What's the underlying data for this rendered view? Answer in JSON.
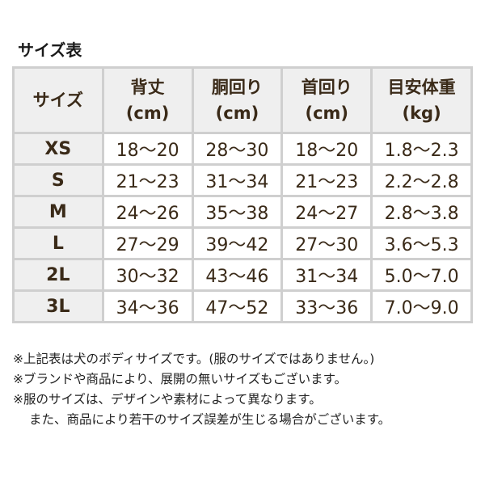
{
  "title": "サイズ表",
  "columns": [
    {
      "label": "サイズ",
      "unit": ""
    },
    {
      "label": "背丈",
      "unit": "(cm)"
    },
    {
      "label": "胴回り",
      "unit": "(cm)"
    },
    {
      "label": "首回り",
      "unit": "(cm)"
    },
    {
      "label": "目安体重",
      "unit": "(kg)"
    }
  ],
  "rows": [
    [
      "XS",
      "18～20",
      "28～30",
      "18～20",
      "1.8～2.3"
    ],
    [
      "S",
      "21～23",
      "31～34",
      "21～23",
      "2.2～2.8"
    ],
    [
      "M",
      "24～26",
      "35～38",
      "24～27",
      "2.8～3.8"
    ],
    [
      "L",
      "27～29",
      "39～42",
      "27～30",
      "3.6～5.3"
    ],
    [
      "2L",
      "30～32",
      "43～46",
      "31～34",
      "5.0～7.0"
    ],
    [
      "3L",
      "34～36",
      "47～52",
      "33～36",
      "7.0～9.0"
    ]
  ],
  "notes": [
    "※上記表は犬のボディサイズです。(服のサイズではありません。)",
    "※ブランドや商品により、展開の無いサイズもございます。",
    "※服のサイズは、デザインや素材によって異なります。",
    "また、商品により若干のサイズ誤差が生じる場合がございます。"
  ],
  "colors": {
    "text": "#3a2a18",
    "header_bg": "#efefef",
    "border": "#cfcfcf"
  }
}
